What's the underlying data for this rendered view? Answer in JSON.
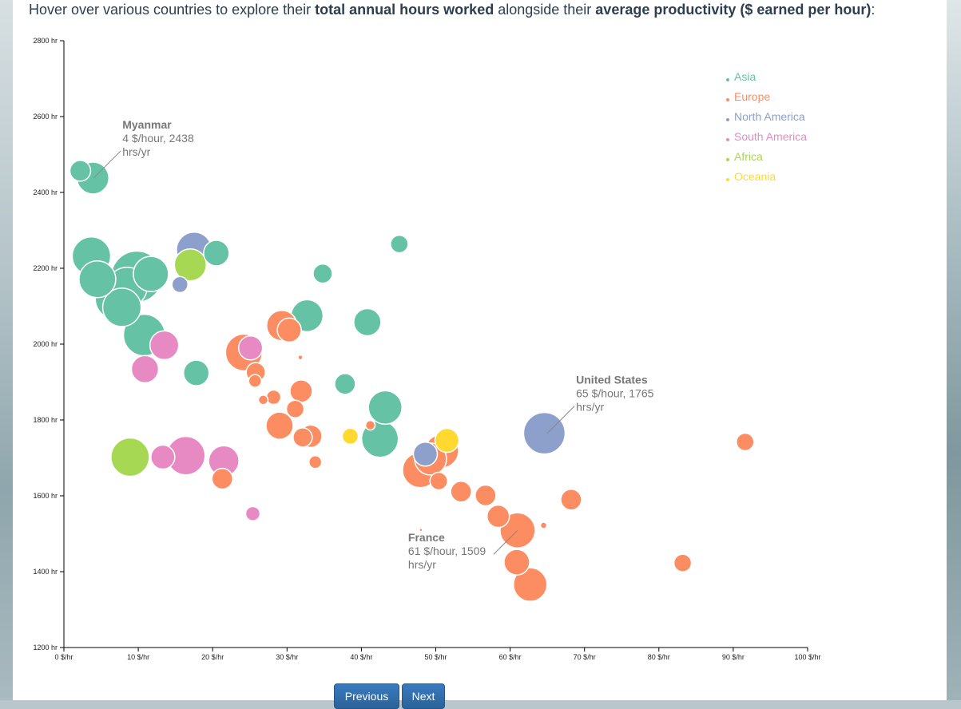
{
  "intro": {
    "part1": "Hover over various countries to explore their ",
    "bold1": "total annual hours worked",
    "part2": " alongside their ",
    "bold2": "average productivity ($ earned per hour)",
    "part3": ":"
  },
  "buttons": {
    "previous": "Previous",
    "next": "Next"
  },
  "colors": {
    "Asia": "#66c2a5",
    "Europe": "#fc8d62",
    "North America": "#8da0cb",
    "South America": "#e78ac3",
    "Africa": "#a6d854",
    "Oceania": "#ffd92f"
  },
  "chart_data": {
    "type": "scatter",
    "title": "",
    "xlabel": "",
    "ylabel": "",
    "xlim": [
      0,
      100
    ],
    "ylim": [
      1200,
      2800
    ],
    "x_ticks": [
      0,
      10,
      20,
      30,
      40,
      50,
      60,
      70,
      80,
      90,
      100
    ],
    "x_tick_labels": [
      "0 $/hr",
      "10 $/hr",
      "20 $/hr",
      "30 $/hr",
      "40 $/hr",
      "50 $/hr",
      "60 $/hr",
      "70 $/hr",
      "80 $/hr",
      "90 $/hr",
      "100 $/hr"
    ],
    "y_ticks": [
      1200,
      1400,
      1600,
      1800,
      2000,
      2200,
      2400,
      2600,
      2800
    ],
    "y_tick_labels": [
      "1200 hr",
      "1400 hr",
      "1600 hr",
      "1800 hr",
      "2000 hr",
      "2200 hr",
      "2400 hr",
      "2600 hr",
      "2800 hr"
    ],
    "legend": [
      "Asia",
      "Europe",
      "North America",
      "South America",
      "Africa",
      "Oceania"
    ],
    "legend_position": "top-right",
    "grid": false,
    "annotations": [
      {
        "name": "Myanmar",
        "line1": "4 $/hour, 2438",
        "line2": "hrs/yr",
        "x": 4,
        "y": 2438,
        "placement": "upper-right"
      },
      {
        "name": "United States",
        "line1": "65 $/hour, 1765",
        "line2": "hrs/yr",
        "x": 65,
        "y": 1765,
        "placement": "upper-right"
      },
      {
        "name": "France",
        "line1": "61 $/hour, 1509",
        "line2": "hrs/yr",
        "x": 61,
        "y": 1509,
        "placement": "lower-left"
      }
    ],
    "points": [
      {
        "x": 2.2,
        "y": 2457,
        "s": 1.3,
        "r": "Asia"
      },
      {
        "x": 3.9,
        "y": 2438,
        "s": 2.0,
        "r": "Asia"
      },
      {
        "x": 3.7,
        "y": 2232,
        "s": 2.4,
        "r": "Asia"
      },
      {
        "x": 4.5,
        "y": 2171,
        "s": 2.3,
        "r": "Asia"
      },
      {
        "x": 9.8,
        "y": 2178,
        "s": 3.2,
        "r": "Asia"
      },
      {
        "x": 8.5,
        "y": 2150,
        "s": 2.5,
        "r": "Asia"
      },
      {
        "x": 7.0,
        "y": 2120,
        "s": 2.6,
        "r": "Asia"
      },
      {
        "x": 7.8,
        "y": 2097,
        "s": 2.4,
        "r": "Asia"
      },
      {
        "x": 11.7,
        "y": 2185,
        "s": 2.2,
        "r": "Asia"
      },
      {
        "x": 10.8,
        "y": 2024,
        "s": 2.6,
        "r": "Asia"
      },
      {
        "x": 20.5,
        "y": 2240,
        "s": 1.6,
        "r": "Asia"
      },
      {
        "x": 17.8,
        "y": 1924,
        "s": 1.6,
        "r": "Asia"
      },
      {
        "x": 34.8,
        "y": 2186,
        "s": 1.2,
        "r": "Asia"
      },
      {
        "x": 32.7,
        "y": 2075,
        "s": 2.0,
        "r": "Asia"
      },
      {
        "x": 45.1,
        "y": 2264,
        "s": 1.1,
        "r": "Asia"
      },
      {
        "x": 40.8,
        "y": 2058,
        "s": 1.7,
        "r": "Asia"
      },
      {
        "x": 37.8,
        "y": 1895,
        "s": 1.3,
        "r": "Asia"
      },
      {
        "x": 43.2,
        "y": 1833,
        "s": 2.1,
        "r": "Asia"
      },
      {
        "x": 42.5,
        "y": 1750,
        "s": 2.3,
        "r": "Asia"
      },
      {
        "x": 17.5,
        "y": 2249,
        "s": 2.2,
        "r": "North America"
      },
      {
        "x": 15.6,
        "y": 2157,
        "s": 1.0,
        "r": "North America"
      },
      {
        "x": 48.6,
        "y": 1710,
        "s": 1.5,
        "r": "North America"
      },
      {
        "x": 64.6,
        "y": 1765,
        "s": 2.6,
        "r": "North America"
      },
      {
        "x": 17.0,
        "y": 2209,
        "s": 2.0,
        "r": "Africa"
      },
      {
        "x": 8.9,
        "y": 1702,
        "s": 2.4,
        "r": "Africa"
      },
      {
        "x": 13.5,
        "y": 1997,
        "s": 1.8,
        "r": "South America"
      },
      {
        "x": 10.9,
        "y": 1934,
        "s": 1.7,
        "r": "South America"
      },
      {
        "x": 13.3,
        "y": 1702,
        "s": 1.5,
        "r": "South America"
      },
      {
        "x": 16.4,
        "y": 1706,
        "s": 2.4,
        "r": "South America"
      },
      {
        "x": 21.5,
        "y": 1692,
        "s": 1.9,
        "r": "South America"
      },
      {
        "x": 25.4,
        "y": 1553,
        "s": 0.9,
        "r": "South America"
      },
      {
        "x": 25.1,
        "y": 1990,
        "s": 1.5,
        "r": "South America"
      },
      {
        "x": 51.5,
        "y": 1746,
        "s": 1.5,
        "r": "Oceania"
      },
      {
        "x": 38.5,
        "y": 1757,
        "s": 1.0,
        "r": "Oceania"
      },
      {
        "x": 24.2,
        "y": 1978,
        "s": 2.3,
        "r": "Europe"
      },
      {
        "x": 25.8,
        "y": 1926,
        "s": 1.2,
        "r": "Europe"
      },
      {
        "x": 25.7,
        "y": 1903,
        "s": 0.8,
        "r": "Europe"
      },
      {
        "x": 30.3,
        "y": 2037,
        "s": 1.5,
        "r": "Europe"
      },
      {
        "x": 29.3,
        "y": 2049,
        "s": 1.9,
        "r": "Europe"
      },
      {
        "x": 31.9,
        "y": 1876,
        "s": 1.4,
        "r": "Europe"
      },
      {
        "x": 28.2,
        "y": 1860,
        "s": 0.9,
        "r": "Europe"
      },
      {
        "x": 26.8,
        "y": 1853,
        "s": 0.6,
        "r": "Europe"
      },
      {
        "x": 31.1,
        "y": 1829,
        "s": 1.1,
        "r": "Europe"
      },
      {
        "x": 29.0,
        "y": 1785,
        "s": 1.7,
        "r": "Europe"
      },
      {
        "x": 33.2,
        "y": 1757,
        "s": 1.4,
        "r": "Europe"
      },
      {
        "x": 32.1,
        "y": 1754,
        "s": 1.2,
        "r": "Europe"
      },
      {
        "x": 33.8,
        "y": 1689,
        "s": 0.8,
        "r": "Europe"
      },
      {
        "x": 31.8,
        "y": 1965,
        "s": 0.3,
        "r": "Europe"
      },
      {
        "x": 21.3,
        "y": 1645,
        "s": 1.3,
        "r": "Europe"
      },
      {
        "x": 47.9,
        "y": 1668,
        "s": 2.2,
        "r": "Europe"
      },
      {
        "x": 49.3,
        "y": 1697,
        "s": 2.0,
        "r": "Europe"
      },
      {
        "x": 50.8,
        "y": 1718,
        "s": 2.1,
        "r": "Europe"
      },
      {
        "x": 50.4,
        "y": 1639,
        "s": 1.1,
        "r": "Europe"
      },
      {
        "x": 53.4,
        "y": 1611,
        "s": 1.3,
        "r": "Europe"
      },
      {
        "x": 56.7,
        "y": 1601,
        "s": 1.3,
        "r": "Europe"
      },
      {
        "x": 58.4,
        "y": 1546,
        "s": 1.4,
        "r": "Europe"
      },
      {
        "x": 61.0,
        "y": 1509,
        "s": 2.2,
        "r": "Europe"
      },
      {
        "x": 60.9,
        "y": 1425,
        "s": 1.6,
        "r": "Europe"
      },
      {
        "x": 62.7,
        "y": 1366,
        "s": 2.1,
        "r": "Europe"
      },
      {
        "x": 64.5,
        "y": 1522,
        "s": 0.4,
        "r": "Europe"
      },
      {
        "x": 68.2,
        "y": 1590,
        "s": 1.3,
        "r": "Europe"
      },
      {
        "x": 83.2,
        "y": 1423,
        "s": 1.1,
        "r": "Europe"
      },
      {
        "x": 91.6,
        "y": 1742,
        "s": 1.1,
        "r": "Europe"
      },
      {
        "x": 48.0,
        "y": 1510,
        "s": 0.2,
        "r": "Europe"
      },
      {
        "x": 41.2,
        "y": 1786,
        "s": 0.6,
        "r": "Europe"
      }
    ]
  }
}
